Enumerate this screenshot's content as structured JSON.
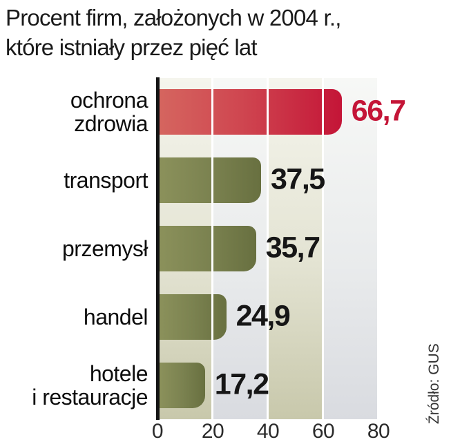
{
  "title": {
    "line1": "Procent firm, założonych w 2004 r.,",
    "line2": "które istniały przez pięć lat"
  },
  "source": "Źródło: GUS",
  "chart_data": {
    "type": "bar",
    "orientation": "horizontal",
    "title": "Procent firm, założonych w 2004 r., które istniały przez pięć lat",
    "categories": [
      "ochrona\nzdrowia",
      "transport",
      "przemysł",
      "handel",
      "hotele\ni restauracje"
    ],
    "values": [
      66.7,
      37.5,
      35.7,
      24.9,
      17.2
    ],
    "value_labels": [
      "66,7",
      "37,5",
      "35,7",
      "24,9",
      "17,2"
    ],
    "highlight_index": 0,
    "x_ticks": [
      "0",
      "20",
      "40",
      "60",
      "80"
    ],
    "xlim": [
      0,
      80
    ],
    "grid": "white vertical gridlines every 20 units over striped background",
    "legend": "none",
    "source": "Źródło: GUS",
    "colors": {
      "highlight_bar_start": "#d5655f",
      "highlight_bar_end": "#c41537",
      "highlight_value_text": "#c41537",
      "bar_start": "#8b915b",
      "bar_end": "#687040",
      "value_text": "#161616",
      "band_khaki": "#c8c8ab",
      "band_gray": "#d9dbe0",
      "axis": "#141414"
    }
  }
}
